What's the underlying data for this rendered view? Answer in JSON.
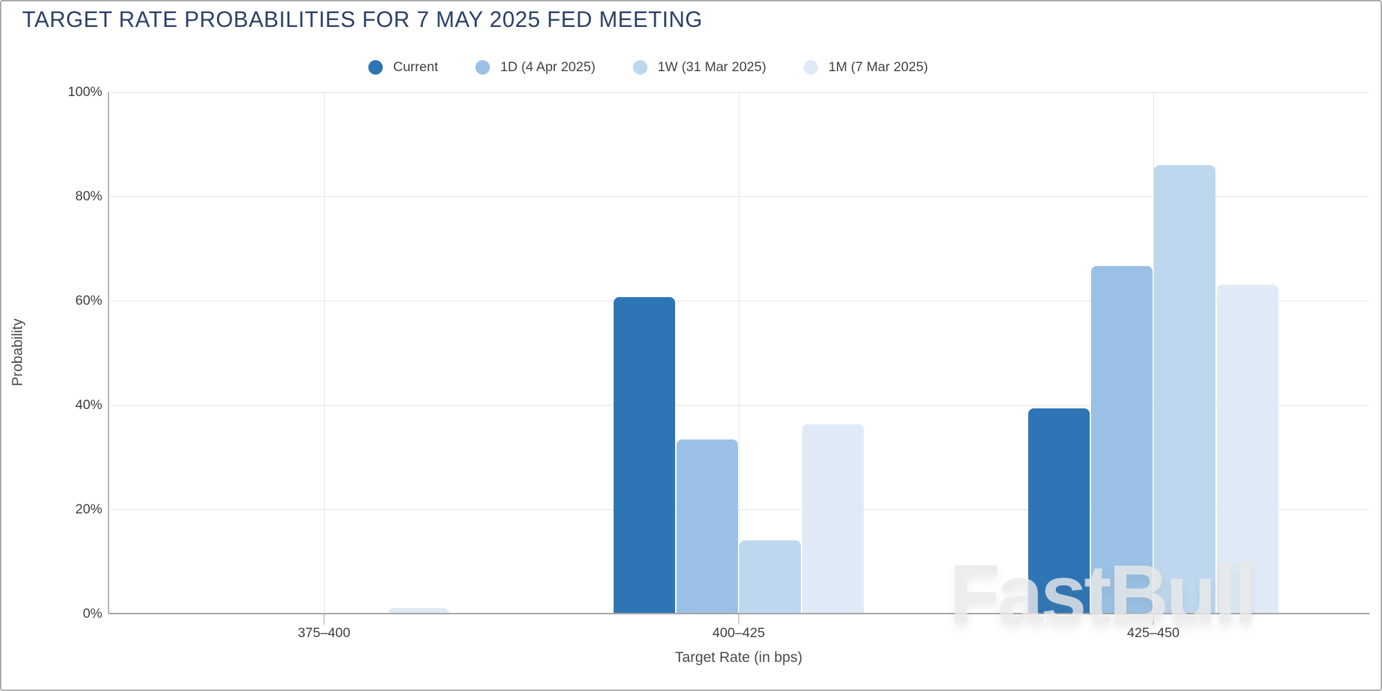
{
  "window": {
    "title": "TARGET RATE PROBABILITIES FOR 7 MAY 2025 FED MEETING"
  },
  "watermark": "FastBull",
  "colors": {
    "title_text": "#2b4168",
    "axis_text": "#3d3d3d",
    "axis_title_text": "#4a4a4a",
    "legend_text": "#3f3f3f",
    "gridline": "#e4e4e4",
    "axis_line": "#a3a3a3",
    "series_current": "#2e75b5",
    "series_1d": "#9ac1e5",
    "series_1w": "#bdd7ee",
    "series_1m": "#dfeaf6"
  },
  "chart_data": {
    "type": "bar",
    "title": "TARGET RATE PROBABILITIES FOR 7 MAY 2025 FED MEETING",
    "categories": [
      "375–400",
      "400–425",
      "425–450"
    ],
    "series": [
      {
        "key": "current",
        "name": "Current",
        "color": "#2e75b5",
        "values": [
          0,
          60.6,
          39.4
        ]
      },
      {
        "key": "1d",
        "name": "1D (4 Apr 2025)",
        "color": "#9ac1e5",
        "values": [
          0,
          33.4,
          66.6
        ]
      },
      {
        "key": "1w",
        "name": "1W (31 Mar 2025)",
        "color": "#bdd7ee",
        "values": [
          0,
          14.0,
          86.0
        ]
      },
      {
        "key": "1m",
        "name": "1M (7 Mar 2025)",
        "color": "#dfeaf6",
        "values": [
          1.0,
          36.3,
          63.1
        ]
      }
    ],
    "xlabel": "Target Rate (in bps)",
    "ylabel": "Probability",
    "ylim": [
      0,
      100
    ],
    "yticks": [
      "0%",
      "20%",
      "40%",
      "60%",
      "80%",
      "100%"
    ],
    "grid": true,
    "legend_position": "top"
  }
}
